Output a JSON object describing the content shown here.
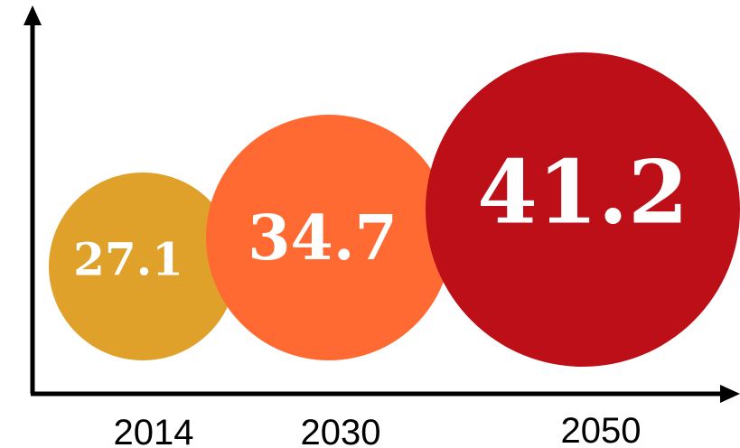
{
  "chart_data": {
    "type": "bubble",
    "categories": [
      "2014",
      "2030",
      "2050"
    ],
    "values": [
      27.1,
      34.7,
      41.2
    ],
    "value_labels": [
      "27.1",
      "34.7",
      "41.2"
    ],
    "colors": [
      "#E0A12A",
      "#FF6A33",
      "#BD0F17"
    ],
    "title": "",
    "xlabel": "",
    "ylabel": "",
    "grid": false,
    "legend": "none"
  }
}
